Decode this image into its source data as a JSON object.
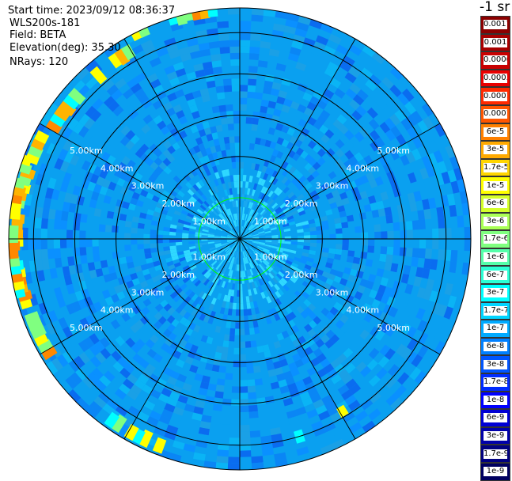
{
  "header": {
    "start_time_label": "Start time:",
    "start_time": "2023/09/12 08:36:37",
    "instrument": "WLS200s-181",
    "field_label": "Field:",
    "field": "BETA",
    "elevation_label": "Elevation(deg):",
    "elevation": "35.30",
    "nrays_label": "NRays:",
    "nrays": "120"
  },
  "colorbar": {
    "unit": "-1 sr",
    "entries": [
      {
        "label": "0.0017",
        "color": "#8b0000"
      },
      {
        "label": "0.001",
        "color": "#a80000"
      },
      {
        "label": "0.0006",
        "color": "#c80000"
      },
      {
        "label": "0.0003",
        "color": "#e80000"
      },
      {
        "label": "0.00017",
        "color": "#ff2a00"
      },
      {
        "label": "0.0001",
        "color": "#ff5500"
      },
      {
        "label": "6e-5",
        "color": "#ff8000"
      },
      {
        "label": "3e-5",
        "color": "#ffaa00"
      },
      {
        "label": "1.7e-5",
        "color": "#ffd500"
      },
      {
        "label": "1e-5",
        "color": "#ffff00"
      },
      {
        "label": "6e-6",
        "color": "#d4ff2b"
      },
      {
        "label": "3e-6",
        "color": "#aaff55"
      },
      {
        "label": "1.7e-6",
        "color": "#80ff80"
      },
      {
        "label": "1e-6",
        "color": "#55ffaa"
      },
      {
        "label": "6e-7",
        "color": "#2bffd4"
      },
      {
        "label": "3e-7",
        "color": "#00ffff"
      },
      {
        "label": "1.7e-7",
        "color": "#00d4ff"
      },
      {
        "label": "1e-7",
        "color": "#00aaff"
      },
      {
        "label": "6e-8",
        "color": "#0080ff"
      },
      {
        "label": "3e-8",
        "color": "#0055ff"
      },
      {
        "label": "1.7e-8",
        "color": "#002bff"
      },
      {
        "label": "1e-8",
        "color": "#0000ff"
      },
      {
        "label": "6e-9",
        "color": "#0000d4"
      },
      {
        "label": "3e-9",
        "color": "#0000aa"
      },
      {
        "label": "1.7e-9",
        "color": "#000080"
      },
      {
        "label": "1e-9",
        "color": "#000060"
      }
    ]
  },
  "range_rings": {
    "labels": [
      "1.00km",
      "2.00km",
      "3.00km",
      "4.00km",
      "5.00km"
    ],
    "max_range_km": 5.6,
    "first_ring_color": "#00ff00",
    "ring_color": "#000000",
    "spoke_count": 12
  },
  "field_colors": {
    "background": "#0aa0f0",
    "near_center": "#2fd8ff",
    "streak_colors": [
      "#ffff00",
      "#ffb400",
      "#ff8800",
      "#80ff80",
      "#00ffff"
    ]
  }
}
